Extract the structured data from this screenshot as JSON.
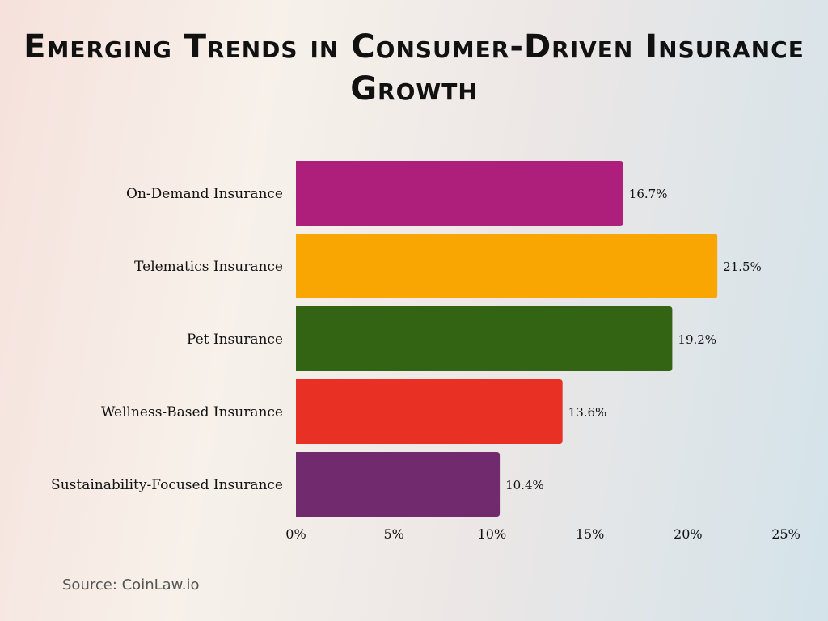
{
  "chart_data": {
    "type": "bar",
    "orientation": "horizontal",
    "title": "Emerging Trends in Consumer-Driven Insurance Growth",
    "categories": [
      "On-Demand Insurance",
      "Telematics Insurance",
      "Pet Insurance",
      "Wellness-Based Insurance",
      "Sustainability-Focused Insurance"
    ],
    "values": [
      16.7,
      21.5,
      19.2,
      13.6,
      10.4
    ],
    "data_labels": [
      "16.7%",
      "21.5%",
      "19.2%",
      "13.6%",
      "10.4%"
    ],
    "colors": [
      "#AD1F7B",
      "#F9A602",
      "#336414",
      "#E83024",
      "#722A6F"
    ],
    "xlim": [
      0,
      25
    ],
    "xticks": [
      0,
      5,
      10,
      15,
      20,
      25
    ],
    "xtick_labels": [
      "0%",
      "5%",
      "10%",
      "15%",
      "20%",
      "25%"
    ],
    "xlabel": "",
    "ylabel": "",
    "grid": false,
    "legend": "none"
  },
  "source": "Source: CoinLaw.io"
}
